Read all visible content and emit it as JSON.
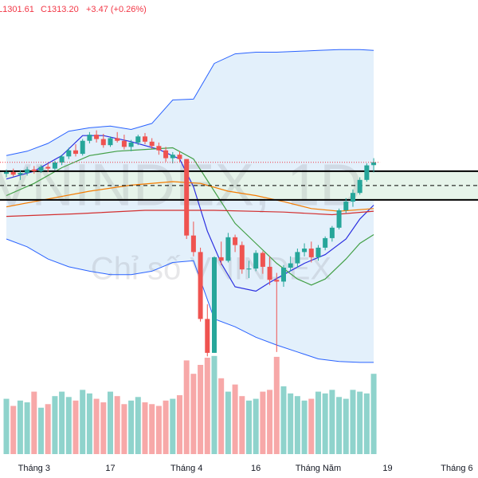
{
  "chart_data": {
    "type": "candlestick",
    "header": {
      "low": "L1301.61",
      "close": "C1313.20",
      "change": "+3.47 (+0.26%)",
      "color": "#f23645"
    },
    "watermark": "VNINDEX, 1D",
    "watermark_subtitle": "Chỉ số VNINDEX",
    "xlim": [
      -0.92,
      68.05
    ],
    "xticks": [
      {
        "value": 4,
        "label": "Tháng 3"
      },
      {
        "value": 15,
        "label": "17"
      },
      {
        "value": 26,
        "label": "Tháng 4"
      },
      {
        "value": 36,
        "label": "16"
      },
      {
        "value": 45,
        "label": "Tháng Năm"
      },
      {
        "value": 55,
        "label": "19"
      },
      {
        "value": 65,
        "label": "Tháng 6"
      }
    ],
    "ylim": [
      950,
      1500
    ],
    "up_color": "#26a69a",
    "down_color": "#ef5350",
    "candles": {
      "open": [
        1300,
        1302,
        1299,
        1301,
        1305,
        1303,
        1308,
        1306,
        1313,
        1320,
        1327,
        1323,
        1338,
        1345,
        1340,
        1333,
        1341,
        1338,
        1331,
        1336,
        1343,
        1337,
        1332,
        1327,
        1318,
        1322,
        1317,
        1229,
        1210,
        1133,
        1094,
        1204,
        1200,
        1227,
        1218,
        1190,
        1191,
        1209,
        1193,
        1178,
        1176,
        1192,
        1197,
        1210,
        1214,
        1204,
        1215,
        1226,
        1238,
        1258,
        1268,
        1278,
        1293,
        1310
      ],
      "high": [
        1305,
        1306,
        1304,
        1308,
        1309,
        1310,
        1312,
        1315,
        1322,
        1330,
        1334,
        1340,
        1348,
        1350,
        1346,
        1343,
        1348,
        1345,
        1339,
        1345,
        1347,
        1341,
        1336,
        1331,
        1325,
        1326,
        1317,
        1245,
        1215,
        1150,
        1205,
        1222,
        1232,
        1230,
        1222,
        1200,
        1212,
        1211,
        1205,
        1186,
        1195,
        1205,
        1214,
        1220,
        1222,
        1218,
        1228,
        1240,
        1260,
        1272,
        1282,
        1296,
        1312,
        1318
      ],
      "low": [
        1296,
        1297,
        1293,
        1298,
        1300,
        1301,
        1302,
        1304,
        1310,
        1317,
        1320,
        1321,
        1335,
        1336,
        1330,
        1331,
        1336,
        1328,
        1326,
        1333,
        1334,
        1329,
        1322,
        1314,
        1312,
        1314,
        1225,
        1205,
        1130,
        1090,
        1094,
        1195,
        1198,
        1210,
        1185,
        1180,
        1188,
        1185,
        1172,
        1095,
        1170,
        1188,
        1192,
        1205,
        1198,
        1200,
        1212,
        1222,
        1236,
        1255,
        1262,
        1276,
        1291,
        1301.61
      ],
      "close": [
        1302,
        1299,
        1301,
        1305,
        1303,
        1308,
        1306,
        1313,
        1320,
        1327,
        1323,
        1338,
        1345,
        1340,
        1333,
        1341,
        1338,
        1331,
        1336,
        1343,
        1337,
        1332,
        1327,
        1318,
        1322,
        1317,
        1229,
        1210,
        1133,
        1094,
        1204,
        1200,
        1227,
        1218,
        1190,
        1191,
        1209,
        1193,
        1178,
        1176,
        1192,
        1197,
        1210,
        1214,
        1204,
        1215,
        1226,
        1238,
        1258,
        1268,
        1278,
        1293,
        1309.73,
        1313.2
      ]
    },
    "volume": {
      "values": [
        620,
        540,
        600,
        580,
        700,
        520,
        560,
        650,
        700,
        640,
        600,
        720,
        680,
        620,
        580,
        700,
        650,
        560,
        600,
        640,
        580,
        560,
        540,
        600,
        620,
        660,
        1050,
        900,
        1000,
        1080,
        1100,
        850,
        700,
        780,
        650,
        600,
        620,
        700,
        720,
        1090,
        760,
        680,
        650,
        600,
        620,
        700,
        680,
        720,
        640,
        620,
        720,
        700,
        680,
        900
      ],
      "ylim": [
        0,
        2500
      ],
      "up_color": "#8fd3cc",
      "down_color": "#f7a8a8"
    },
    "bands": {
      "x": [
        0,
        3,
        6,
        9,
        12,
        15,
        18,
        21,
        24,
        27,
        30,
        33,
        36,
        39,
        42,
        45,
        48,
        51,
        53
      ],
      "upper": [
        1321,
        1326,
        1335,
        1349,
        1353,
        1355,
        1351,
        1358,
        1385,
        1386,
        1427,
        1438,
        1440,
        1440,
        1441,
        1442,
        1443,
        1443,
        1442
      ],
      "lower": [
        1225,
        1216,
        1202,
        1193,
        1188,
        1184,
        1184,
        1188,
        1198,
        1200,
        1133,
        1124,
        1112,
        1103,
        1095,
        1087,
        1084,
        1083,
        1083
      ],
      "color": "#2962ff",
      "fill": "#e3f0fb"
    },
    "lines": [
      {
        "color": "#2a2ee0",
        "x": [
          0,
          4,
          8,
          11,
          14,
          18,
          22,
          25,
          27,
          29,
          31,
          33,
          36,
          38,
          40,
          43,
          46,
          49,
          51,
          53
        ],
        "values": [
          1294,
          1303,
          1321,
          1344,
          1344,
          1337,
          1328,
          1317,
          1285,
          1234,
          1197,
          1170,
          1165,
          1175,
          1184,
          1197,
          1207,
          1225,
          1248,
          1264
        ]
      },
      {
        "color": "#43a047",
        "x": [
          0,
          4,
          8,
          12,
          16,
          20,
          24,
          27,
          30,
          33,
          36,
          39,
          42,
          44,
          46,
          49,
          51,
          53
        ],
        "values": [
          1275,
          1289,
          1307,
          1321,
          1326,
          1328,
          1330,
          1317,
          1280,
          1243,
          1220,
          1197,
          1179,
          1172,
          1179,
          1202,
          1220,
          1230
        ]
      },
      {
        "color": "#f57c00",
        "x": [
          0,
          6,
          12,
          18,
          24,
          28,
          32,
          36,
          40,
          44,
          48,
          53
        ],
        "values": [
          1262,
          1271,
          1280,
          1287,
          1291,
          1289,
          1280,
          1275,
          1268,
          1260,
          1257,
          1260
        ]
      },
      {
        "color": "#d32f2f",
        "x": [
          0,
          10,
          20,
          30,
          40,
          47,
          53
        ],
        "values": [
          1251,
          1254,
          1258,
          1258,
          1256,
          1253,
          1257
        ]
      }
    ],
    "zone": {
      "top": 1303,
      "bottom": 1270,
      "mid": 1286.5,
      "fill": "#e6f4ea",
      "line_color": "#000000"
    },
    "last_price_color": "#f23645"
  }
}
